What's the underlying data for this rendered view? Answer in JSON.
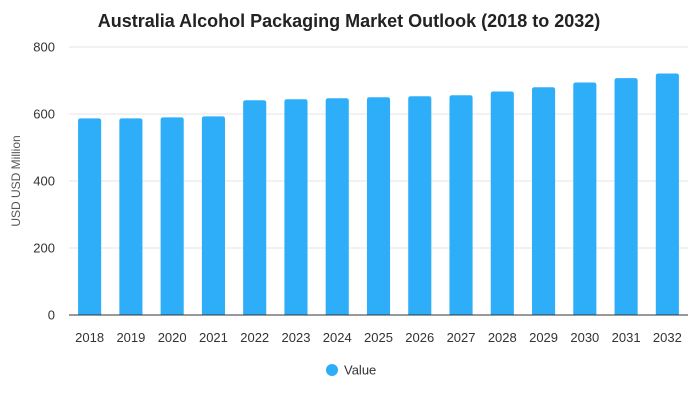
{
  "chart_data": {
    "type": "bar",
    "title": "Australia Alcohol Packaging Market Outlook (2018 to 2032)",
    "xlabel": "",
    "ylabel": "USD USD Million",
    "ylim": [
      0,
      800
    ],
    "yticks": [
      0,
      200,
      400,
      600,
      800
    ],
    "grid": true,
    "legend_position": "bottom",
    "categories": [
      "2018",
      "2019",
      "2020",
      "2021",
      "2022",
      "2023",
      "2024",
      "2025",
      "2026",
      "2027",
      "2028",
      "2029",
      "2030",
      "2031",
      "2032"
    ],
    "series": [
      {
        "name": "Value",
        "color": "#2eaef8",
        "values": [
          587,
          587,
          590,
          593,
          641,
          644,
          647,
          650,
          653,
          656,
          667,
          680,
          694,
          707,
          721
        ]
      }
    ]
  }
}
